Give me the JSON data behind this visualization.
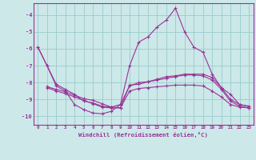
{
  "bg_color": "#cce8e8",
  "line_color": "#993399",
  "grid_color": "#99cccc",
  "xlabel": "Windchill (Refroidissement éolien,°C)",
  "xlabel_color": "#993399",
  "xtick_color": "#993399",
  "ytick_color": "#993399",
  "spine_color": "#993399",
  "ylim": [
    -10.5,
    -3.3
  ],
  "xlim": [
    -0.5,
    23.5
  ],
  "series": [
    {
      "x": [
        0,
        1,
        2,
        3,
        4,
        5,
        6,
        7,
        8,
        9,
        10,
        11,
        12,
        13,
        14,
        15,
        16,
        17,
        18,
        19,
        20,
        21,
        22,
        23
      ],
      "y": [
        -5.9,
        -7.0,
        -8.2,
        -8.5,
        -9.3,
        -9.6,
        -9.8,
        -9.85,
        -9.7,
        -9.3,
        -7.0,
        -5.6,
        -5.3,
        -4.7,
        -4.3,
        -3.6,
        -5.0,
        -5.9,
        -6.2,
        -7.5,
        -8.3,
        -8.7,
        -9.3,
        -9.4
      ]
    },
    {
      "x": [
        0,
        1,
        2,
        3,
        4,
        5,
        6,
        7,
        8,
        9,
        10,
        11,
        12,
        13,
        14,
        15,
        16,
        17,
        18,
        19,
        20,
        21,
        22,
        23
      ],
      "y": [
        -5.9,
        -7.0,
        -8.1,
        -8.4,
        -8.7,
        -9.1,
        -9.2,
        -9.4,
        -9.45,
        -9.5,
        -8.15,
        -8.1,
        -7.95,
        -7.8,
        -7.65,
        -7.6,
        -7.5,
        -7.5,
        -7.5,
        -7.7,
        -8.3,
        -9.0,
        -9.3,
        -9.4
      ]
    },
    {
      "x": [
        1,
        2,
        3,
        4,
        5,
        6,
        7,
        8,
        9,
        10,
        11,
        12,
        13,
        14,
        15,
        16,
        17,
        18,
        19,
        20,
        21,
        22,
        23
      ],
      "y": [
        -8.25,
        -8.4,
        -8.55,
        -8.75,
        -8.95,
        -9.05,
        -9.25,
        -9.45,
        -9.3,
        -8.2,
        -8.0,
        -7.95,
        -7.85,
        -7.75,
        -7.65,
        -7.55,
        -7.55,
        -7.6,
        -7.85,
        -8.4,
        -9.1,
        -9.4,
        -9.5
      ]
    },
    {
      "x": [
        1,
        2,
        3,
        4,
        5,
        6,
        7,
        8,
        9,
        10,
        11,
        12,
        13,
        14,
        15,
        16,
        17,
        18,
        19,
        20,
        21,
        22,
        23
      ],
      "y": [
        -8.3,
        -8.5,
        -8.65,
        -8.85,
        -9.05,
        -9.25,
        -9.45,
        -9.5,
        -9.5,
        -8.5,
        -8.35,
        -8.3,
        -8.25,
        -8.2,
        -8.15,
        -8.15,
        -8.15,
        -8.2,
        -8.5,
        -8.85,
        -9.3,
        -9.45,
        -9.5
      ]
    }
  ]
}
